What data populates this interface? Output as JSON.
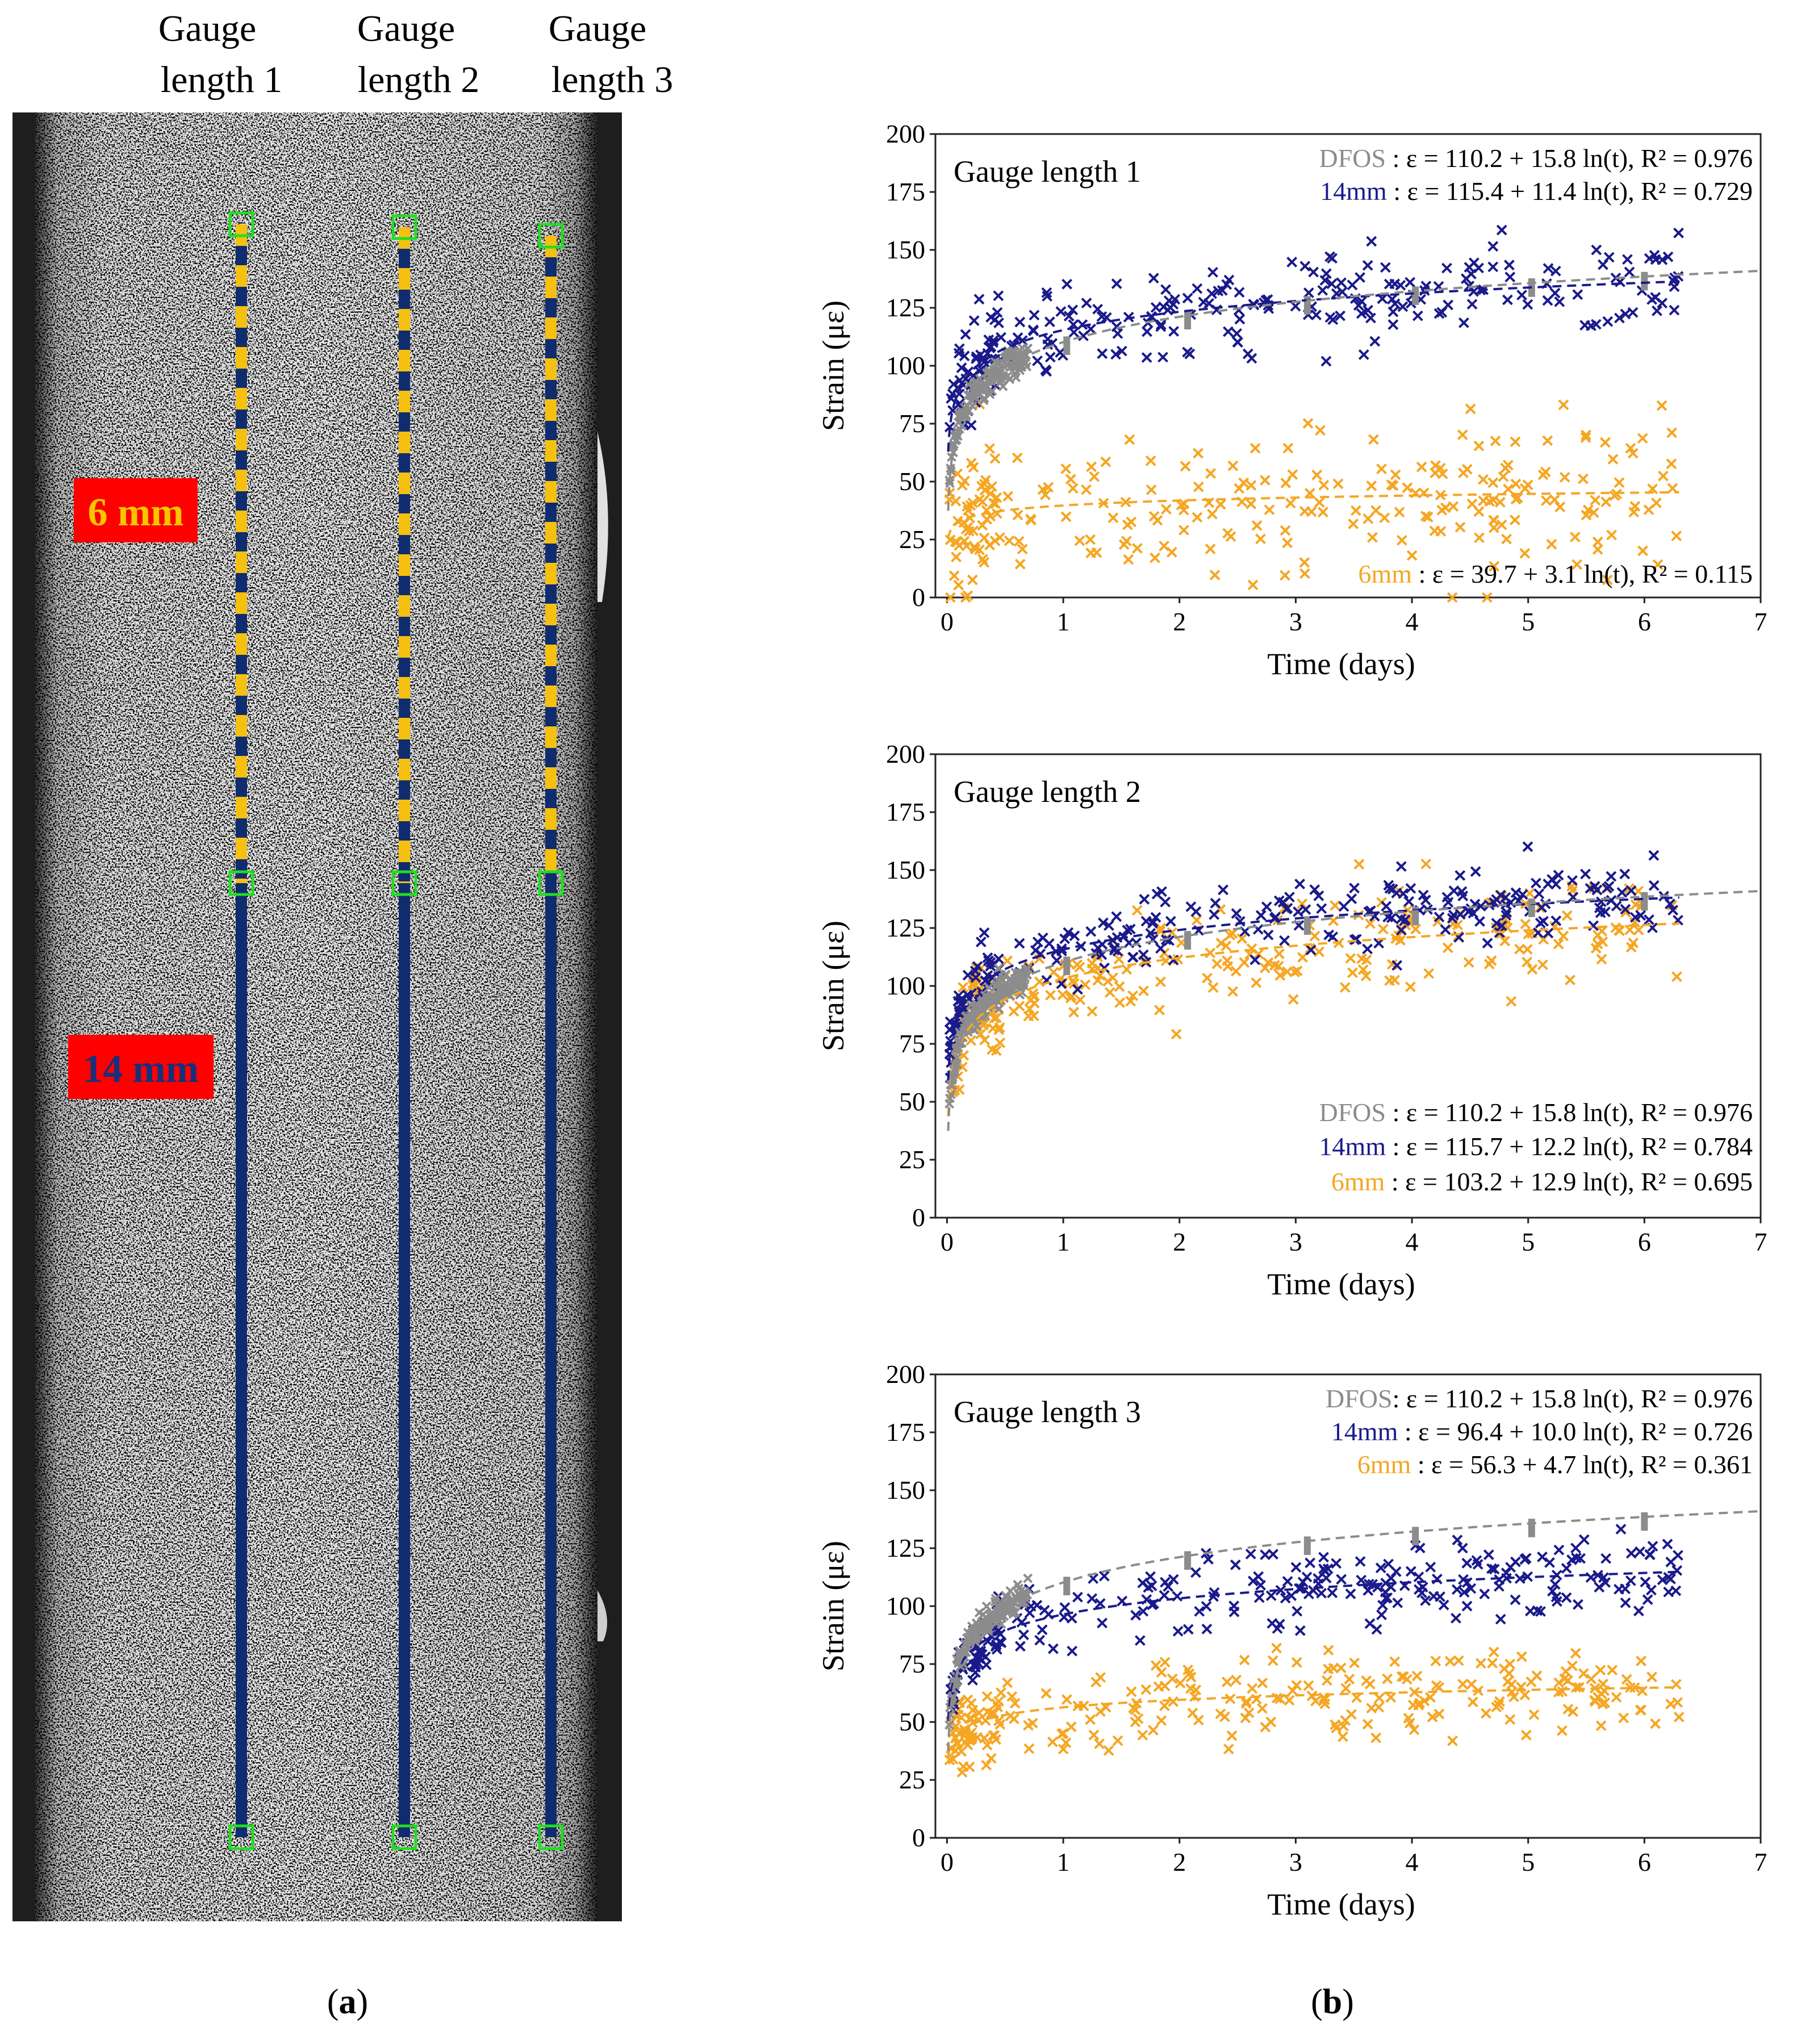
{
  "colors": {
    "dfos": "#8c8c8c",
    "mm14": "#1a1a8c",
    "mm6": "#f5a623",
    "bar_navy": "#0f2d6e",
    "bar_yellow": "#f5c010",
    "marker_green": "#22dd22",
    "label_bg": "#ff0000",
    "label_6mm_text": "#f7c600",
    "label_14mm_text": "#1a2f7a"
  },
  "photo": {
    "gauge_headers": [
      {
        "line1": "Gauge",
        "line2": "length 1"
      },
      {
        "line1": "Gauge",
        "line2": "length 2"
      },
      {
        "line1": "Gauge",
        "line2": "length 3"
      }
    ],
    "label_6mm": "6 mm",
    "label_14mm": "14 mm"
  },
  "panel_labels": {
    "a_open": "(",
    "a": "a",
    "a_close": ")",
    "b_open": "(",
    "b": "b",
    "b_close": ")"
  },
  "chart_data": [
    {
      "type": "scatter",
      "title": "Gauge length 1",
      "xlabel": "Time (days)",
      "ylabel": "Strain (με)",
      "xlim": [
        -0.1,
        7
      ],
      "ylim": [
        0,
        200
      ],
      "xticks": [
        "0",
        "1",
        "2",
        "3",
        "4",
        "5",
        "6",
        "7"
      ],
      "yticks": [
        "0",
        "25",
        "50",
        "75",
        "100",
        "125",
        "150",
        "175",
        "200"
      ],
      "legend_position": "top-right",
      "annotations": [
        {
          "name": "DFOS",
          "text": " : ε = 110.2 + 15.8 ln(t), R² = 0.976",
          "color": "#8c8c8c",
          "position": "top-right"
        },
        {
          "name": "14mm",
          "text": " : ε = 115.4 + 11.4 ln(t), R² = 0.729",
          "color": "#1a1a8c",
          "position": "top-right"
        },
        {
          "name": "6mm",
          "text": " : ε = 39.7 + 3.1 ln(t), R² = 0.115",
          "color": "#f5a623",
          "position": "bottom-right"
        }
      ],
      "series": [
        {
          "name": "DFOS",
          "fit": {
            "a": 110.2,
            "b": 15.8
          },
          "t_max": 7.0
        },
        {
          "name": "14mm",
          "fit": {
            "a": 115.4,
            "b": 11.4
          },
          "t_max": 6.3,
          "scatter_sd": 10
        },
        {
          "name": "6mm",
          "fit": {
            "a": 39.7,
            "b": 3.1
          },
          "t_max": 6.3,
          "scatter_sd": 16
        }
      ]
    },
    {
      "type": "scatter",
      "title": "Gauge length 2",
      "xlabel": "Time (days)",
      "ylabel": "Strain (με)",
      "xlim": [
        -0.1,
        7
      ],
      "ylim": [
        0,
        200
      ],
      "xticks": [
        "0",
        "1",
        "2",
        "3",
        "4",
        "5",
        "6",
        "7"
      ],
      "yticks": [
        "0",
        "25",
        "50",
        "75",
        "100",
        "125",
        "150",
        "175",
        "200"
      ],
      "legend_position": "bottom-right",
      "annotations": [
        {
          "name": "DFOS",
          "text": " : ε = 110.2 + 15.8 ln(t), R² = 0.976",
          "color": "#8c8c8c",
          "position": "bottom-right"
        },
        {
          "name": "14mm",
          "text": " : ε = 115.7 + 12.2 ln(t), R² = 0.784",
          "color": "#1a1a8c",
          "position": "bottom-right"
        },
        {
          "name": "6mm",
          "text": " : ε = 103.2 + 12.9 ln(t), R² = 0.695",
          "color": "#f5a623",
          "position": "bottom-right"
        }
      ],
      "series": [
        {
          "name": "DFOS",
          "fit": {
            "a": 110.2,
            "b": 15.8
          },
          "t_max": 7.0
        },
        {
          "name": "14mm",
          "fit": {
            "a": 115.7,
            "b": 12.2
          },
          "t_max": 6.3,
          "scatter_sd": 8
        },
        {
          "name": "6mm",
          "fit": {
            "a": 103.2,
            "b": 12.9
          },
          "t_max": 6.3,
          "scatter_sd": 11
        }
      ]
    },
    {
      "type": "scatter",
      "title": "Gauge length 3",
      "xlabel": "Time (days)",
      "ylabel": "Strain (με)",
      "xlim": [
        -0.1,
        7
      ],
      "ylim": [
        0,
        200
      ],
      "xticks": [
        "0",
        "1",
        "2",
        "3",
        "4",
        "5",
        "6",
        "7"
      ],
      "yticks": [
        "0",
        "25",
        "50",
        "75",
        "100",
        "125",
        "150",
        "175",
        "200"
      ],
      "legend_position": "top-right",
      "annotations": [
        {
          "name": "DFOS",
          "text": ": ε = 110.2 + 15.8 ln(t), R² = 0.976",
          "color": "#8c8c8c",
          "position": "top-right"
        },
        {
          "name": "14mm",
          "text": " : ε = 96.4 + 10.0 ln(t), R² = 0.726",
          "color": "#1a1a8c",
          "position": "top-right"
        },
        {
          "name": "6mm",
          "text": " : ε = 56.3 + 4.7 ln(t), R² = 0.361",
          "color": "#f5a623",
          "position": "top-right"
        }
      ],
      "series": [
        {
          "name": "DFOS",
          "fit": {
            "a": 110.2,
            "b": 15.8
          },
          "t_max": 7.0
        },
        {
          "name": "14mm",
          "fit": {
            "a": 96.4,
            "b": 10.0
          },
          "t_max": 6.3,
          "scatter_sd": 8
        },
        {
          "name": "6mm",
          "fit": {
            "a": 56.3,
            "b": 4.7
          },
          "t_max": 6.3,
          "scatter_sd": 10
        }
      ]
    }
  ]
}
